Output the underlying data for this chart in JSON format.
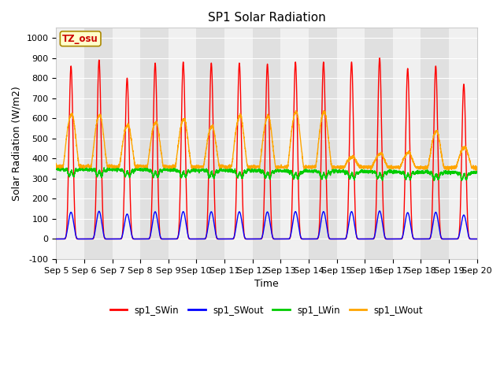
{
  "title": "SP1 Solar Radiation",
  "xlabel": "Time",
  "ylabel": "Solar Radiation (W/m2)",
  "ylim": [
    -100,
    1050
  ],
  "annotation": "TZ_osu",
  "colors": {
    "SWin": "#ff0000",
    "SWout": "#0000ff",
    "LWin": "#00cc00",
    "LWout": "#ffa500"
  },
  "legend_labels": [
    "sp1_SWin",
    "sp1_SWout",
    "sp1_LWin",
    "sp1_LWout"
  ],
  "title_fontsize": 11,
  "axis_fontsize": 9,
  "tick_fontsize": 8,
  "n_days": 15,
  "SWin_peaks": [
    860,
    890,
    800,
    875,
    880,
    875,
    875,
    870,
    880,
    880,
    880,
    900,
    848,
    860,
    770
  ],
  "LWout_night": 360,
  "LWout_day_peaks": [
    615,
    610,
    560,
    575,
    590,
    555,
    607,
    605,
    625,
    625,
    405,
    420,
    425,
    530,
    450
  ],
  "LWin_base": 350,
  "band_colors": [
    "#f0f0f0",
    "#e0e0e0"
  ]
}
